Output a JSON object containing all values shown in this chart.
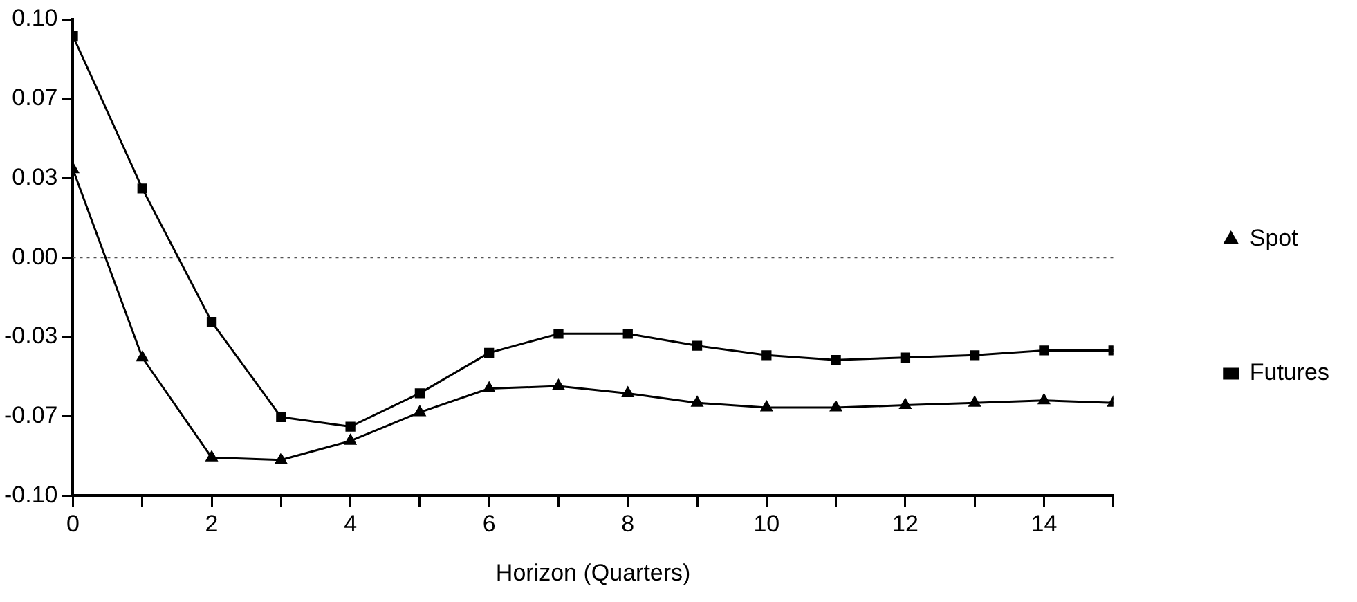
{
  "chart_data": {
    "type": "line",
    "xlabel": "Horizon (Quarters)",
    "x": [
      0,
      1,
      2,
      3,
      4,
      5,
      6,
      7,
      8,
      9,
      10,
      11,
      12,
      13,
      14,
      15
    ],
    "series": [
      {
        "name": "Spot",
        "color": "#000000",
        "marker": "triangle",
        "values": [
          0.037,
          -0.042,
          -0.084,
          -0.085,
          -0.077,
          -0.065,
          -0.055,
          -0.054,
          -0.057,
          -0.061,
          -0.063,
          -0.063,
          -0.062,
          -0.061,
          -0.06,
          -0.061
        ]
      },
      {
        "name": "Futures",
        "color": "#000000",
        "marker": "square",
        "values": [
          0.093,
          0.029,
          -0.027,
          -0.067,
          -0.071,
          -0.057,
          -0.04,
          -0.032,
          -0.032,
          -0.037,
          -0.041,
          -0.043,
          -0.042,
          -0.041,
          -0.039,
          -0.039
        ]
      }
    ],
    "xlim": [
      0,
      15
    ],
    "xticks": [
      0,
      {
        "value": 1,
        "label": null
      },
      2,
      {
        "value": 3,
        "label": null
      },
      4,
      {
        "value": 5,
        "label": null
      },
      6,
      {
        "value": 7,
        "label": null
      },
      8,
      {
        "value": 9,
        "label": null
      },
      10,
      {
        "value": 11,
        "label": null
      },
      12,
      {
        "value": 13,
        "label": null
      },
      14,
      {
        "value": 15,
        "label": null
      }
    ],
    "ylim": [
      -0.1,
      0.1
    ],
    "yticks": [
      {
        "value": -0.1,
        "label": "-0.10"
      },
      {
        "value": -0.0667,
        "label": "-0.07"
      },
      {
        "value": -0.0333,
        "label": "-0.03"
      },
      {
        "value": 0,
        "label": "0.00"
      },
      {
        "value": 0.0333,
        "label": "0.03"
      },
      {
        "value": 0.0667,
        "label": "0.07"
      },
      {
        "value": 0.1,
        "label": "0.10"
      }
    ],
    "ref_lines": [
      {
        "axis": "y",
        "value": 0,
        "color": "#555555",
        "line_style": "dotted"
      }
    ],
    "grid": false,
    "legend": "right",
    "line_style": "solid"
  }
}
